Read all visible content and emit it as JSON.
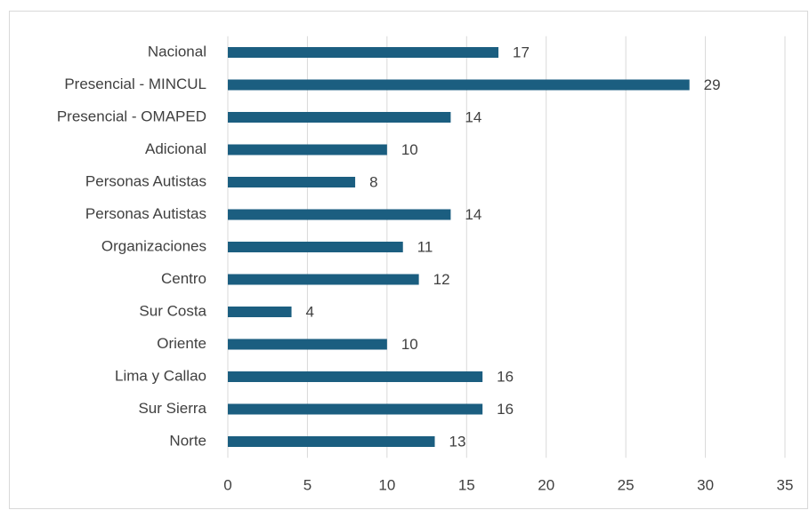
{
  "chart_data": {
    "type": "barh",
    "categories": [
      "Nacional",
      "Presencial - MINCUL",
      "Presencial - OMAPED",
      "Adicional",
      "Personas Autistas",
      "Personas Autistas",
      "Organizaciones",
      "Centro",
      "Sur Costa",
      "Oriente",
      "Lima y Callao",
      "Sur Sierra",
      "Norte"
    ],
    "values": [
      17,
      29,
      14,
      10,
      8,
      14,
      11,
      12,
      4,
      10,
      16,
      16,
      13
    ],
    "color": "#1b5e80",
    "xlim": [
      0,
      35
    ],
    "xticks": [
      0,
      5,
      10,
      15,
      20,
      25,
      30,
      35
    ],
    "grid": true
  }
}
